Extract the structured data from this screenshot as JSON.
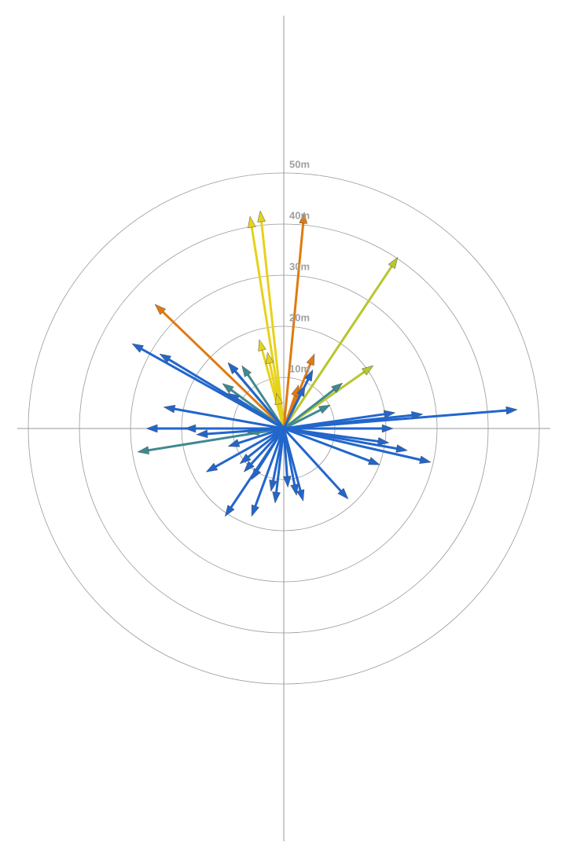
{
  "chart_data": {
    "type": "vector",
    "rlim": [
      0,
      50
    ],
    "rticks": [
      {
        "value": 10,
        "label": "10m"
      },
      {
        "value": 20,
        "label": "20m"
      },
      {
        "value": 30,
        "label": "30m"
      },
      {
        "value": 40,
        "label": "40m"
      },
      {
        "value": 50,
        "label": "50m"
      }
    ],
    "series": [
      {
        "color": "#e6d21a",
        "x": [
          -6.6,
          -4.6,
          -4.8,
          -3.2,
          -1.4
        ],
        "values": [
          41.5,
          42.6,
          17.4,
          14.9,
          6.9
        ]
      },
      {
        "color": "#e07a10",
        "x": [
          4.0,
          -25.2,
          6.0,
          2.9
        ],
        "values": [
          42.3,
          24.3,
          14.6,
          8.5
        ]
      },
      {
        "color": "#b8c630",
        "x": [
          22.3,
          17.5
        ],
        "values": [
          33.5,
          12.3
        ]
      },
      {
        "color": "#3f8a90",
        "x": [
          11.5,
          -10.9,
          -8.2,
          -12.0,
          9.1,
          -28.6,
          -7.1
        ],
        "values": [
          8.9,
          12.8,
          12.3,
          8.8,
          4.6,
          -4.6,
          -0.8
        ]
      },
      {
        "color": "#2266cc",
        "x": [
          -29.7,
          -24.3,
          -10.9,
          45.7,
          27.2,
          21.8,
          21.4,
          20.6,
          24.2,
          28.8,
          18.8,
          12.6,
          3.8,
          2.5,
          0.8,
          -1.7,
          -2.5,
          -6.3,
          -11.5,
          -15.2,
          -10.9,
          -8.6,
          -7.8,
          -6.3,
          -26.9,
          -19.4,
          -17.1,
          -23.5,
          5.7,
          4.2,
          -10.9
        ],
        "values": [
          16.6,
          14.6,
          12.9,
          3.7,
          2.8,
          3.1,
          0,
          -2.8,
          -4.3,
          -6.6,
          -7.1,
          -13.8,
          -14.2,
          -13.1,
          -11.5,
          -14.6,
          -12.3,
          -17.2,
          -17.2,
          -8.5,
          -3.5,
          -6.9,
          -8.5,
          -10.0,
          0,
          0,
          -1.2,
          4.2,
          11.5,
          8.5,
          6.9
        ]
      }
    ]
  }
}
